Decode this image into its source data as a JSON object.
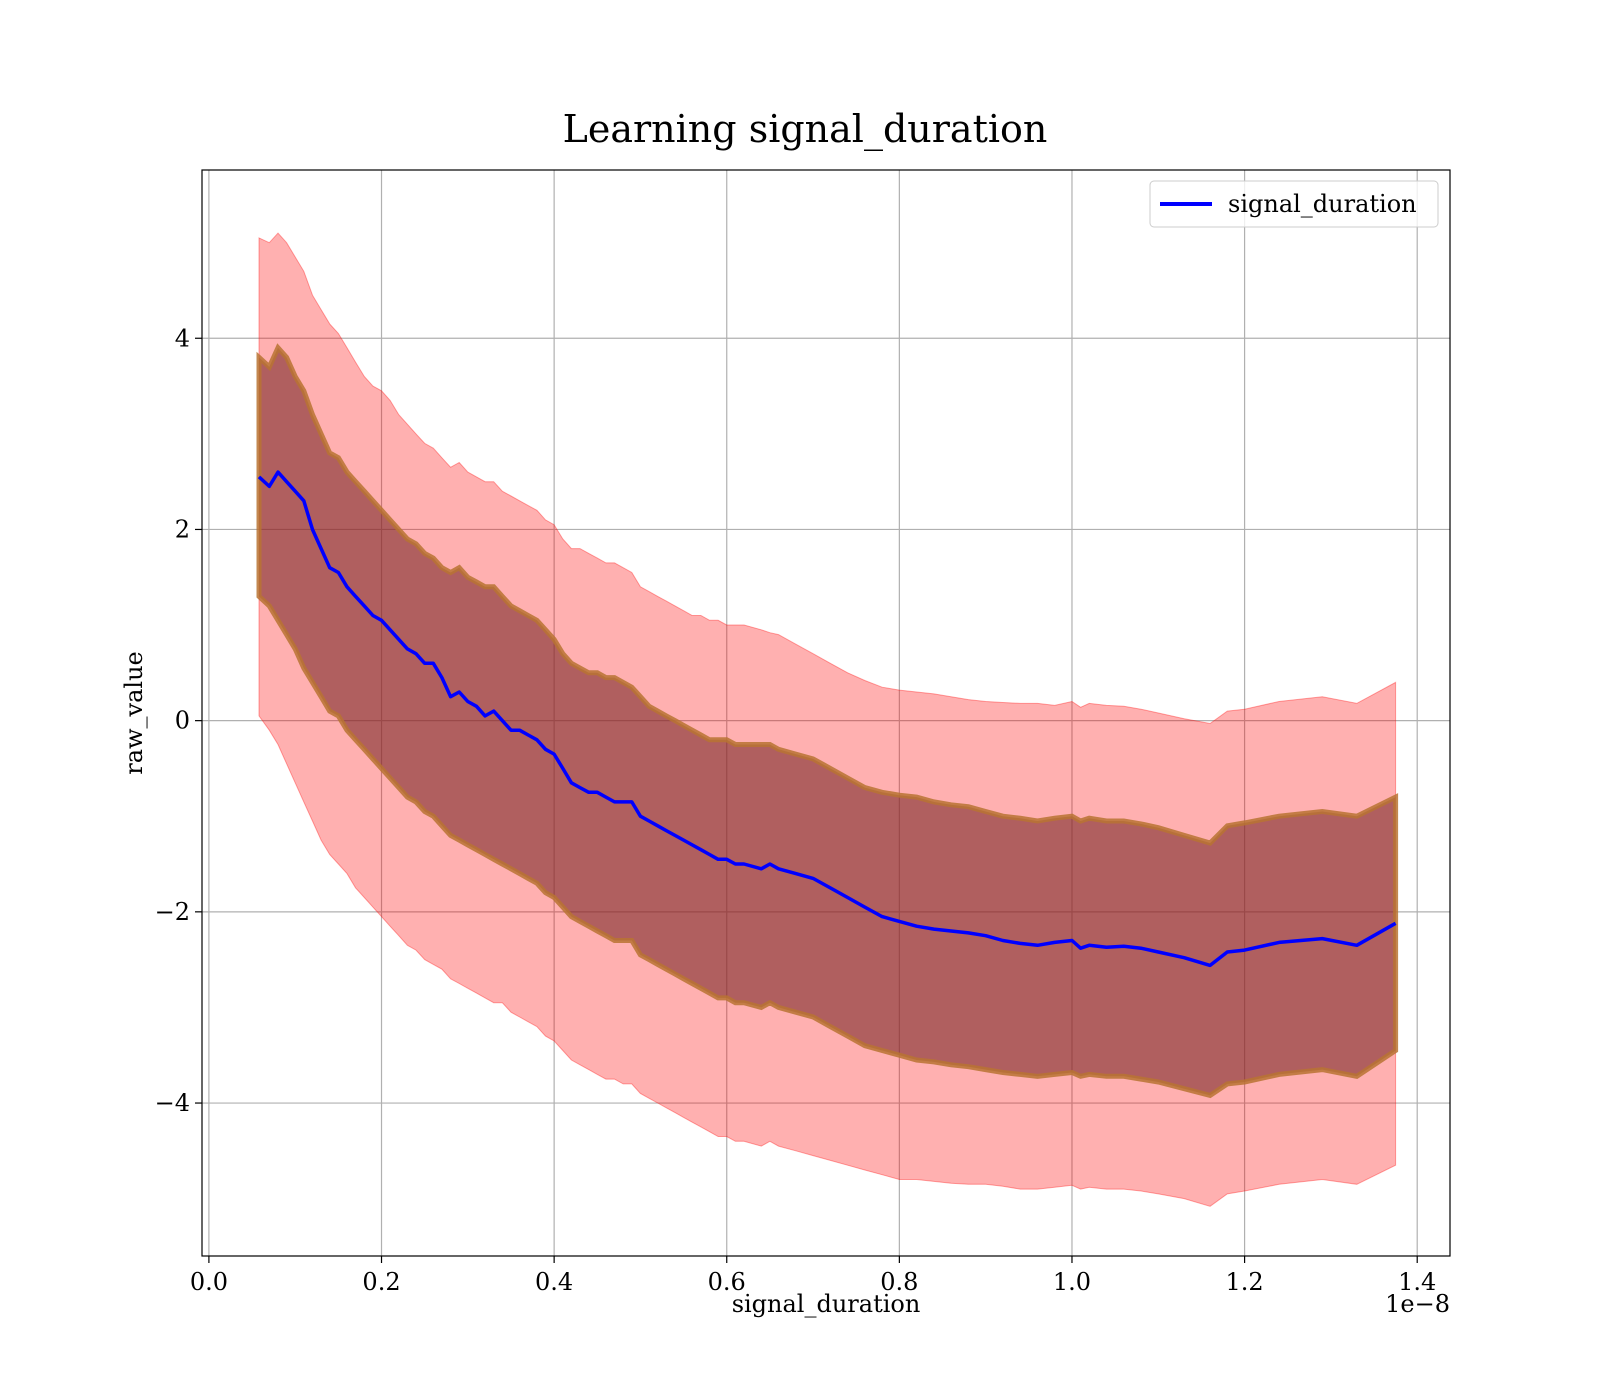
{
  "chart_data": {
    "type": "line",
    "title": "Learning signal_duration",
    "xlabel": "signal_duration",
    "ylabel": "raw_value",
    "x_offset_label": "1e−8",
    "xlim": [
      -0.008,
      1.438
    ],
    "ylim": [
      -5.6,
      5.76
    ],
    "x_ticks": [
      0.0,
      0.2,
      0.4,
      0.6,
      0.8,
      1.0,
      1.2,
      1.4
    ],
    "x_tick_labels": [
      "0.0",
      "0.2",
      "0.4",
      "0.6",
      "0.8",
      "1.0",
      "1.2",
      "1.4"
    ],
    "y_ticks": [
      4,
      2,
      0,
      -2,
      -4
    ],
    "y_tick_labels": [
      "4",
      "2",
      "0",
      "−2",
      "−4"
    ],
    "grid": true,
    "legend_position": "top-right",
    "colors": {
      "line": "#0000ff",
      "outer_band": "#ff0000",
      "inner_band": "#7b2a2a",
      "inner_band_edge": "#b87333",
      "grid": "#b0b0b0"
    },
    "series": [
      {
        "name": "signal_duration",
        "x": [
          0.058,
          0.07,
          0.08,
          0.09,
          0.1,
          0.11,
          0.12,
          0.13,
          0.14,
          0.15,
          0.16,
          0.17,
          0.18,
          0.19,
          0.2,
          0.21,
          0.22,
          0.23,
          0.24,
          0.25,
          0.26,
          0.27,
          0.28,
          0.29,
          0.3,
          0.31,
          0.32,
          0.33,
          0.34,
          0.35,
          0.36,
          0.37,
          0.38,
          0.39,
          0.4,
          0.41,
          0.42,
          0.43,
          0.44,
          0.45,
          0.46,
          0.47,
          0.48,
          0.49,
          0.5,
          0.51,
          0.52,
          0.53,
          0.54,
          0.55,
          0.56,
          0.57,
          0.58,
          0.59,
          0.6,
          0.61,
          0.62,
          0.64,
          0.65,
          0.66,
          0.68,
          0.7,
          0.72,
          0.74,
          0.76,
          0.78,
          0.8,
          0.82,
          0.84,
          0.86,
          0.88,
          0.9,
          0.92,
          0.94,
          0.96,
          0.98,
          1.0,
          1.01,
          1.02,
          1.04,
          1.06,
          1.08,
          1.1,
          1.13,
          1.16,
          1.18,
          1.2,
          1.24,
          1.29,
          1.33,
          1.375
        ],
        "y": [
          2.55,
          2.45,
          2.6,
          2.5,
          2.4,
          2.3,
          2.0,
          1.8,
          1.6,
          1.55,
          1.4,
          1.3,
          1.2,
          1.1,
          1.05,
          0.95,
          0.85,
          0.75,
          0.7,
          0.6,
          0.6,
          0.45,
          0.25,
          0.3,
          0.2,
          0.15,
          0.05,
          0.1,
          0.0,
          -0.1,
          -0.1,
          -0.15,
          -0.2,
          -0.3,
          -0.35,
          -0.5,
          -0.65,
          -0.7,
          -0.75,
          -0.75,
          -0.8,
          -0.85,
          -0.85,
          -0.85,
          -1.0,
          -1.05,
          -1.1,
          -1.15,
          -1.2,
          -1.25,
          -1.3,
          -1.35,
          -1.4,
          -1.45,
          -1.45,
          -1.5,
          -1.5,
          -1.55,
          -1.5,
          -1.55,
          -1.6,
          -1.65,
          -1.75,
          -1.85,
          -1.95,
          -2.05,
          -2.1,
          -2.15,
          -2.18,
          -2.2,
          -2.22,
          -2.25,
          -2.3,
          -2.33,
          -2.35,
          -2.32,
          -2.3,
          -2.38,
          -2.35,
          -2.37,
          -2.36,
          -2.38,
          -2.42,
          -2.48,
          -2.56,
          -2.42,
          -2.4,
          -2.32,
          -2.28,
          -2.35,
          -2.12
        ],
        "outer_lower": [
          0.05,
          -0.1,
          -0.25,
          -0.45,
          -0.65,
          -0.85,
          -1.05,
          -1.25,
          -1.4,
          -1.5,
          -1.6,
          -1.75,
          -1.85,
          -1.95,
          -2.05,
          -2.15,
          -2.25,
          -2.35,
          -2.4,
          -2.5,
          -2.55,
          -2.6,
          -2.7,
          -2.75,
          -2.8,
          -2.85,
          -2.9,
          -2.95,
          -2.95,
          -3.05,
          -3.1,
          -3.15,
          -3.2,
          -3.3,
          -3.35,
          -3.45,
          -3.55,
          -3.6,
          -3.65,
          -3.7,
          -3.75,
          -3.75,
          -3.8,
          -3.8,
          -3.9,
          -3.95,
          -4.0,
          -4.05,
          -4.1,
          -4.15,
          -4.2,
          -4.25,
          -4.3,
          -4.35,
          -4.35,
          -4.4,
          -4.4,
          -4.45,
          -4.4,
          -4.45,
          -4.5,
          -4.55,
          -4.6,
          -4.65,
          -4.7,
          -4.75,
          -4.8,
          -4.8,
          -4.82,
          -4.84,
          -4.85,
          -4.85,
          -4.87,
          -4.9,
          -4.9,
          -4.88,
          -4.86,
          -4.9,
          -4.88,
          -4.9,
          -4.9,
          -4.92,
          -4.95,
          -5.0,
          -5.08,
          -4.95,
          -4.92,
          -4.85,
          -4.8,
          -4.85,
          -4.65
        ],
        "inner_lower": [
          1.3,
          1.2,
          1.05,
          0.9,
          0.75,
          0.55,
          0.4,
          0.25,
          0.1,
          0.05,
          -0.1,
          -0.2,
          -0.3,
          -0.4,
          -0.5,
          -0.6,
          -0.7,
          -0.8,
          -0.85,
          -0.95,
          -1.0,
          -1.1,
          -1.2,
          -1.25,
          -1.3,
          -1.35,
          -1.4,
          -1.45,
          -1.5,
          -1.55,
          -1.6,
          -1.65,
          -1.7,
          -1.8,
          -1.85,
          -1.95,
          -2.05,
          -2.1,
          -2.15,
          -2.2,
          -2.25,
          -2.3,
          -2.3,
          -2.3,
          -2.45,
          -2.5,
          -2.55,
          -2.6,
          -2.65,
          -2.7,
          -2.75,
          -2.8,
          -2.85,
          -2.9,
          -2.9,
          -2.95,
          -2.95,
          -3.0,
          -2.95,
          -3.0,
          -3.05,
          -3.1,
          -3.2,
          -3.3,
          -3.4,
          -3.45,
          -3.5,
          -3.55,
          -3.57,
          -3.6,
          -3.62,
          -3.65,
          -3.68,
          -3.7,
          -3.72,
          -3.7,
          -3.68,
          -3.72,
          -3.7,
          -3.72,
          -3.72,
          -3.75,
          -3.78,
          -3.85,
          -3.92,
          -3.8,
          -3.78,
          -3.7,
          -3.65,
          -3.72,
          -3.45
        ],
        "inner_upper": [
          3.8,
          3.7,
          3.9,
          3.8,
          3.6,
          3.45,
          3.2,
          3.0,
          2.8,
          2.75,
          2.6,
          2.5,
          2.4,
          2.3,
          2.2,
          2.1,
          2.0,
          1.9,
          1.85,
          1.75,
          1.7,
          1.6,
          1.55,
          1.6,
          1.5,
          1.45,
          1.4,
          1.4,
          1.3,
          1.2,
          1.15,
          1.1,
          1.05,
          0.95,
          0.85,
          0.7,
          0.6,
          0.55,
          0.5,
          0.5,
          0.45,
          0.45,
          0.4,
          0.35,
          0.25,
          0.15,
          0.1,
          0.05,
          0.0,
          -0.05,
          -0.1,
          -0.15,
          -0.2,
          -0.2,
          -0.2,
          -0.25,
          -0.25,
          -0.25,
          -0.25,
          -0.3,
          -0.35,
          -0.4,
          -0.5,
          -0.6,
          -0.7,
          -0.75,
          -0.78,
          -0.8,
          -0.85,
          -0.88,
          -0.9,
          -0.95,
          -1.0,
          -1.02,
          -1.05,
          -1.02,
          -1.0,
          -1.05,
          -1.02,
          -1.05,
          -1.05,
          -1.08,
          -1.12,
          -1.2,
          -1.28,
          -1.1,
          -1.07,
          -1.0,
          -0.95,
          -1.0,
          -0.8
        ],
        "outer_upper": [
          5.05,
          5.0,
          5.1,
          5.0,
          4.85,
          4.7,
          4.45,
          4.3,
          4.15,
          4.05,
          3.9,
          3.75,
          3.6,
          3.5,
          3.45,
          3.35,
          3.2,
          3.1,
          3.0,
          2.9,
          2.85,
          2.75,
          2.65,
          2.7,
          2.6,
          2.55,
          2.5,
          2.5,
          2.4,
          2.35,
          2.3,
          2.25,
          2.2,
          2.1,
          2.05,
          1.9,
          1.8,
          1.8,
          1.75,
          1.7,
          1.65,
          1.65,
          1.6,
          1.55,
          1.4,
          1.35,
          1.3,
          1.25,
          1.2,
          1.15,
          1.1,
          1.1,
          1.05,
          1.05,
          1.0,
          1.0,
          1.0,
          0.95,
          0.92,
          0.9,
          0.8,
          0.7,
          0.6,
          0.5,
          0.42,
          0.35,
          0.32,
          0.3,
          0.28,
          0.25,
          0.22,
          0.2,
          0.19,
          0.18,
          0.18,
          0.16,
          0.2,
          0.14,
          0.18,
          0.16,
          0.15,
          0.12,
          0.08,
          0.02,
          -0.03,
          0.1,
          0.12,
          0.2,
          0.25,
          0.18,
          0.4
        ]
      }
    ]
  }
}
